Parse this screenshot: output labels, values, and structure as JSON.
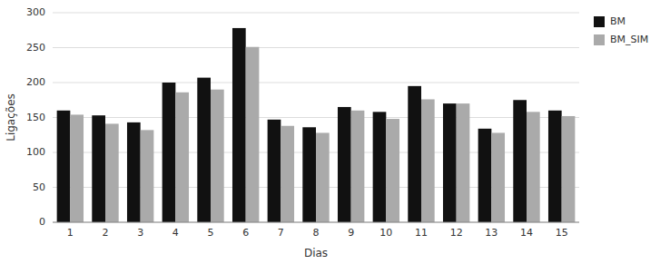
{
  "chart_data": {
    "type": "bar",
    "categories": [
      1,
      2,
      3,
      4,
      5,
      6,
      7,
      8,
      9,
      10,
      11,
      12,
      13,
      14,
      15
    ],
    "series": [
      {
        "name": "BM",
        "color": "#111111",
        "values": [
          160,
          153,
          143,
          200,
          207,
          278,
          147,
          136,
          165,
          158,
          195,
          170,
          134,
          175,
          160
        ]
      },
      {
        "name": "BM_SIM",
        "color": "#aaaaaa",
        "values": [
          154,
          141,
          132,
          186,
          190,
          251,
          138,
          128,
          160,
          148,
          176,
          170,
          128,
          158,
          152
        ]
      }
    ],
    "x_label": "Dias",
    "y_label": "Ligações",
    "ylim": [
      0,
      300
    ],
    "yticks": [
      0,
      50,
      100,
      150,
      200,
      250,
      300
    ],
    "grid": true,
    "legend": "upper right"
  }
}
